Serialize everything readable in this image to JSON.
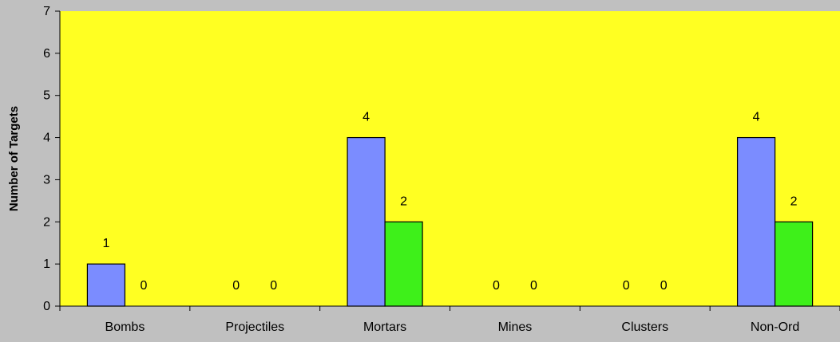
{
  "chart_data": {
    "type": "bar",
    "categories": [
      "Bombs",
      "Projectiles",
      "Mortars",
      "Mines",
      "Clusters",
      "Non-Ord"
    ],
    "series": [
      {
        "values": [
          1,
          0,
          4,
          0,
          0,
          4
        ],
        "color": "#7b8cff"
      },
      {
        "values": [
          0,
          0,
          2,
          0,
          0,
          2
        ],
        "color": "#3ef01a"
      }
    ],
    "xlabel": "",
    "ylabel": "Number of Targets",
    "ylim": [
      0,
      7
    ],
    "yticks": [
      "0",
      "1",
      "2",
      "3",
      "4",
      "5",
      "6",
      "7"
    ],
    "grid": false,
    "plot_background": "#ffff22",
    "figure_background": "#c0c0c0"
  }
}
